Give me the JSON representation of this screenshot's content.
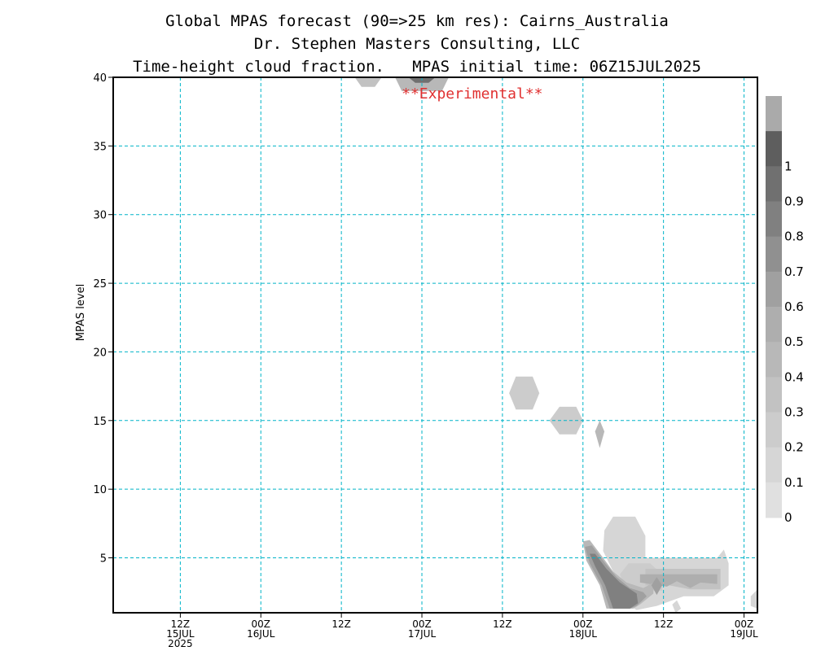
{
  "title_lines": [
    "Global MPAS forecast (90=>25 km res): Cairns_Australia",
    "Dr. Stephen Masters Consulting, LLC",
    "Time-height cloud fraction.   MPAS initial time: 06Z15JUL2025"
  ],
  "chart_data": {
    "type": "heatmap",
    "ylabel": "MPAS level",
    "watermark": "**Experimental**",
    "ylim": [
      1,
      40
    ],
    "xlim_hours_from_init": [
      -4,
      92
    ],
    "yticks": [
      5,
      10,
      15,
      20,
      25,
      30,
      35,
      40
    ],
    "xticks": [
      {
        "hour": 6,
        "label": [
          "12Z",
          "15JUL",
          "2025"
        ]
      },
      {
        "hour": 18,
        "label": [
          "00Z",
          "16JUL"
        ]
      },
      {
        "hour": 30,
        "label": [
          "12Z",
          ""
        ]
      },
      {
        "hour": 42,
        "label": [
          "00Z",
          "17JUL"
        ]
      },
      {
        "hour": 54,
        "label": [
          "12Z",
          ""
        ]
      },
      {
        "hour": 66,
        "label": [
          "00Z",
          "18JUL"
        ]
      },
      {
        "hour": 78,
        "label": [
          "12Z",
          ""
        ]
      },
      {
        "hour": 90,
        "label": [
          "00Z",
          "19JUL"
        ]
      }
    ],
    "grid": true,
    "grid_color": "#00b4c8",
    "colorbar": {
      "placement": "right",
      "labels": [
        "0",
        "0.1",
        "0.2",
        "0.3",
        "0.4",
        "0.5",
        "0.6",
        "0.7",
        "0.8",
        "0.9",
        "1"
      ],
      "colors": [
        "#e0e0e0",
        "#d6d6d6",
        "#cccccc",
        "#c2c2c2",
        "#b8b8b8",
        "#aeaeae",
        "#a0a0a0",
        "#909090",
        "#808080",
        "#707070",
        "#5e5e5e",
        "#aaaaaa"
      ]
    },
    "cloud_regions": [
      {
        "points": [
          [
            32,
            40
          ],
          [
            33,
            39.3
          ],
          [
            35,
            39.3
          ],
          [
            36,
            40
          ]
        ],
        "fraction": 0.25
      },
      {
        "points": [
          [
            38,
            40
          ],
          [
            39,
            39
          ],
          [
            45,
            39
          ],
          [
            46,
            40
          ]
        ],
        "fraction": 0.4
      },
      {
        "points": [
          [
            40,
            40
          ],
          [
            41,
            39.6
          ],
          [
            43,
            39.6
          ],
          [
            44,
            40
          ]
        ],
        "fraction": 0.85
      },
      {
        "points": [
          [
            55,
            17
          ],
          [
            56,
            18.2
          ],
          [
            58.5,
            18.2
          ],
          [
            59.5,
            17
          ],
          [
            58.5,
            15.8
          ],
          [
            56,
            15.8
          ]
        ],
        "fraction": 0.2
      },
      {
        "points": [
          [
            61,
            15
          ],
          [
            62.5,
            16
          ],
          [
            65,
            16
          ],
          [
            66,
            15
          ],
          [
            65,
            14
          ],
          [
            62.5,
            14
          ]
        ],
        "fraction": 0.15
      },
      {
        "points": [
          [
            67.8,
            14.2
          ],
          [
            68.5,
            15
          ],
          [
            69.2,
            14.2
          ],
          [
            68.5,
            13
          ]
        ],
        "fraction": 0.35
      },
      {
        "points": [
          [
            69.2,
            7
          ],
          [
            70.5,
            8
          ],
          [
            73.8,
            8
          ],
          [
            75.3,
            6.6
          ],
          [
            75.3,
            5
          ],
          [
            86,
            5
          ],
          [
            87,
            5.6
          ],
          [
            87.7,
            4.6
          ],
          [
            87.7,
            3
          ],
          [
            85.5,
            2.2
          ],
          [
            81,
            2.2
          ],
          [
            77,
            1.5
          ],
          [
            74,
            1.2
          ],
          [
            73,
            1.5
          ],
          [
            71.5,
            3
          ],
          [
            70,
            4.5
          ],
          [
            69,
            5.5
          ]
        ],
        "fraction": 0.12
      },
      {
        "points": [
          [
            71.5,
            3.8
          ],
          [
            72.8,
            4.6
          ],
          [
            76,
            4.6
          ],
          [
            77.8,
            3.8
          ],
          [
            77.8,
            2.6
          ],
          [
            72.5,
            2.6
          ]
        ],
        "fraction": 0.2
      },
      {
        "points": [
          [
            75.3,
            4.2
          ],
          [
            86.5,
            4.2
          ],
          [
            86.5,
            2.7
          ],
          [
            82,
            2.7
          ],
          [
            78.8,
            3
          ],
          [
            75.3,
            3
          ]
        ],
        "fraction": 0.3
      },
      {
        "points": [
          [
            74.5,
            3.8
          ],
          [
            86,
            3.8
          ],
          [
            86,
            3.1
          ],
          [
            83.5,
            3.2
          ],
          [
            82,
            2.8
          ],
          [
            80,
            3.3
          ],
          [
            78.5,
            2.9
          ],
          [
            74.5,
            3.2
          ]
        ],
        "fraction": 0.45
      },
      {
        "points": [
          [
            66,
            6.2
          ],
          [
            67,
            6.3
          ],
          [
            69,
            5
          ],
          [
            70.5,
            4
          ],
          [
            72.5,
            3.2
          ],
          [
            75,
            2.8
          ],
          [
            76.5,
            3.2
          ],
          [
            76.5,
            2.4
          ],
          [
            74.5,
            1.6
          ],
          [
            73.5,
            1.3
          ],
          [
            69.5,
            1.3
          ],
          [
            68.5,
            3
          ],
          [
            66.5,
            4.8
          ]
        ],
        "fraction": 0.4
      },
      {
        "points": [
          [
            66.3,
            5.8
          ],
          [
            67.3,
            5.9
          ],
          [
            69.3,
            4.6
          ],
          [
            71,
            3.6
          ],
          [
            73,
            2.8
          ],
          [
            75,
            2.5
          ],
          [
            75.5,
            2.2
          ],
          [
            74,
            1.5
          ],
          [
            73,
            1.3
          ],
          [
            70,
            1.3
          ],
          [
            68.8,
            3
          ],
          [
            67,
            4.6
          ]
        ],
        "fraction": 0.6
      },
      {
        "points": [
          [
            67,
            5.3
          ],
          [
            67.8,
            5.3
          ],
          [
            69.5,
            4.2
          ],
          [
            71.5,
            3.2
          ],
          [
            74,
            2.4
          ],
          [
            74.2,
            1.7
          ],
          [
            73,
            1.3
          ],
          [
            70.5,
            1.3
          ],
          [
            69.3,
            3
          ],
          [
            67.8,
            4.4
          ]
        ],
        "fraction": 0.75
      },
      {
        "points": [
          [
            76.2,
            3
          ],
          [
            77,
            3.6
          ],
          [
            77.8,
            3
          ],
          [
            77,
            2.3
          ]
        ],
        "fraction": 0.6
      },
      {
        "points": [
          [
            79.3,
            1.6
          ],
          [
            80,
            1.9
          ],
          [
            80.6,
            1.3
          ],
          [
            79.8,
            1
          ]
        ],
        "fraction": 0.12
      },
      {
        "points": [
          [
            91,
            2.2
          ],
          [
            92,
            2.7
          ],
          [
            92,
            1.3
          ],
          [
            91,
            1.5
          ]
        ],
        "fraction": 0.12
      }
    ]
  }
}
